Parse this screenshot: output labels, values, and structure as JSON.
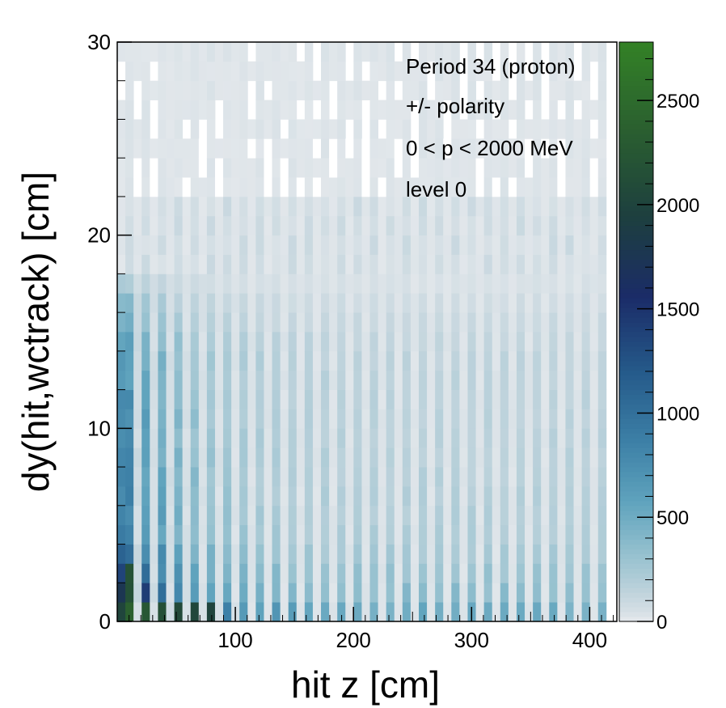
{
  "chart_data": {
    "type": "heatmap",
    "xlabel": "hit z [cm]",
    "ylabel": "dy(hit,wctrack) [cm]",
    "xlim": [
      0,
      423
    ],
    "ylim": [
      0,
      30
    ],
    "x_ticks": [
      "100",
      "200",
      "300",
      "400"
    ],
    "y_ticks": [
      "0",
      "10",
      "20",
      "30"
    ],
    "z_lim": [
      0,
      2780
    ],
    "z_ticks": [
      "0",
      "500",
      "1000",
      "1500",
      "2000",
      "2500"
    ],
    "annotations": [
      "Period 34 (proton)",
      "+/- polarity",
      "0 < p < 2000 MeV",
      "level 0"
    ],
    "colorscale": [
      "#e9ebee",
      "#c5d6de",
      "#96c1cf",
      "#5fa3bd",
      "#3c7fa6",
      "#255a8a",
      "#1b2c68",
      "#1d3f3f",
      "#2a5e30",
      "#338126"
    ],
    "bins": {
      "x_columns": 60,
      "x_bin_width_cm": 6.9,
      "y_rows": 30,
      "y_bin_width_cm": 1.0,
      "first_column_x_cm": 3.5
    },
    "model": {
      "description_of_values": "Counts per bin, estimated from color. Even columns (strip gaps) are near empty; odd columns hold hits.",
      "row_profile_low_y": [
        2700,
        1950,
        1600,
        1300,
        1100,
        1050,
        1000,
        950,
        900,
        880,
        860,
        840,
        820,
        780,
        700,
        560,
        420,
        250
      ],
      "column_decay_length_cm": 45,
      "far_column_level": 300,
      "outline_row_min_count": 60
    }
  }
}
